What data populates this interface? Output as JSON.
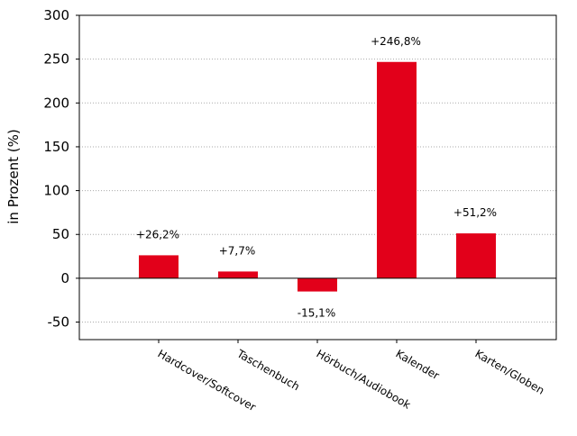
{
  "chart_data": {
    "type": "bar",
    "title": "",
    "xlabel": "",
    "ylabel": "in Prozent (%)",
    "categories": [
      "Hardcover/Softcover",
      "Taschenbuch",
      "Hörbuch/Audiobook",
      "Kalender",
      "Karten/Globen"
    ],
    "values": [
      26.2,
      7.7,
      -15.1,
      246.8,
      51.2
    ],
    "data_labels": [
      "+26,2%",
      "+7,7%",
      "-15,1%",
      "+246,8%",
      "+51,2%"
    ],
    "ylim": [
      -70,
      300
    ],
    "yticks": [
      -50,
      0,
      50,
      100,
      150,
      200,
      250,
      300
    ],
    "grid": true,
    "bar_color": "#e2001a",
    "grid_color": "#aaaaaa",
    "zero_line_color": "#000000"
  }
}
